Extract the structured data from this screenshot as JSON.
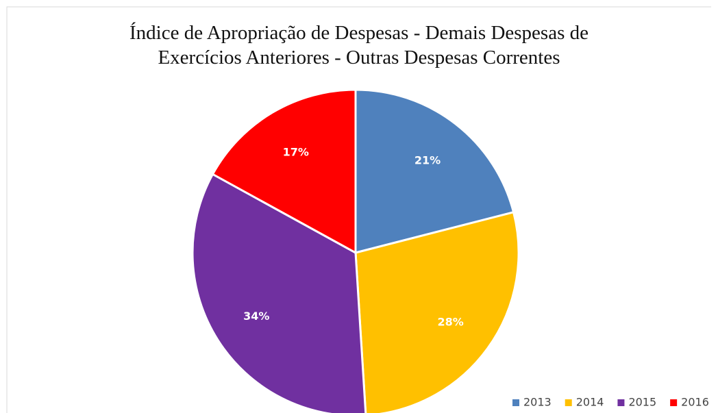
{
  "chart_data": {
    "type": "pie",
    "title": "Índice de Apropriação de Despesas - Demais Despesas de Exercícios Anteriores - Outras Despesas Correntes",
    "categories": [
      "2013",
      "2014",
      "2015",
      "2016"
    ],
    "values": [
      21,
      28,
      34,
      17
    ],
    "value_labels": [
      "21%",
      "28%",
      "34%",
      "17%"
    ],
    "colors": [
      "#4f81bd",
      "#ffc000",
      "#7030a0",
      "#ff0000"
    ],
    "legend": "bottom-right"
  }
}
